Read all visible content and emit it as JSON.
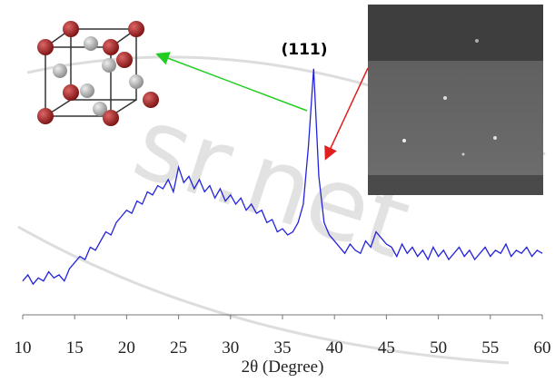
{
  "chart_data": {
    "type": "line",
    "annotation": "(111)",
    "xlabel": "2θ (Degree)",
    "watermark": "sr.net",
    "x": [
      10,
      10.5,
      11,
      11.5,
      12,
      12.5,
      13,
      13.5,
      14,
      14.5,
      15,
      15.5,
      16,
      16.5,
      17,
      17.5,
      18,
      18.5,
      19,
      19.5,
      20,
      20.5,
      21,
      21.5,
      22,
      22.5,
      23,
      23.5,
      24,
      24.5,
      25,
      25.5,
      26,
      26.5,
      27,
      27.5,
      28,
      28.5,
      29,
      29.5,
      30,
      30.5,
      31,
      31.5,
      32,
      32.5,
      33,
      33.5,
      34,
      34.5,
      35,
      35.5,
      36,
      36.5,
      37,
      37.5,
      38,
      38.5,
      39,
      39.5,
      40,
      40.5,
      41,
      41.5,
      42,
      42.5,
      43,
      43.5,
      44,
      44.5,
      45,
      45.5,
      46,
      46.5,
      47,
      47.5,
      48,
      48.5,
      49,
      49.5,
      50,
      50.5,
      51,
      51.5,
      52,
      52.5,
      53,
      53.5,
      54,
      54.5,
      55,
      55.5,
      56,
      56.5,
      57,
      57.5,
      58,
      58.5,
      59,
      59.5,
      60
    ],
    "series": [
      {
        "color": "#2222dd",
        "values": [
          11,
          13,
          10,
          12,
          11,
          14,
          12,
          13,
          11,
          15,
          17,
          19,
          18,
          22,
          21,
          24,
          27,
          26,
          30,
          32,
          34,
          33,
          37,
          36,
          40,
          39,
          42,
          41,
          44,
          40,
          48,
          43,
          45,
          41,
          44,
          40,
          42,
          38,
          41,
          37,
          39,
          36,
          38,
          34,
          36,
          33,
          34,
          30,
          31,
          27,
          28,
          26,
          27,
          30,
          36,
          55,
          80,
          45,
          30,
          26,
          24,
          22,
          20,
          23,
          21,
          20,
          24,
          22,
          27,
          25,
          23,
          22,
          19,
          23,
          20,
          22,
          19,
          21,
          18,
          22,
          19,
          21,
          18,
          20,
          22,
          19,
          21,
          18,
          20,
          22,
          19,
          21,
          20,
          23,
          19,
          21,
          20,
          22,
          19,
          21,
          20
        ]
      }
    ],
    "xlim": [
      10,
      60
    ],
    "ylim": [
      0,
      100
    ],
    "xticks": [
      10,
      15,
      20,
      25,
      30,
      35,
      40,
      45,
      50,
      55,
      60
    ]
  }
}
